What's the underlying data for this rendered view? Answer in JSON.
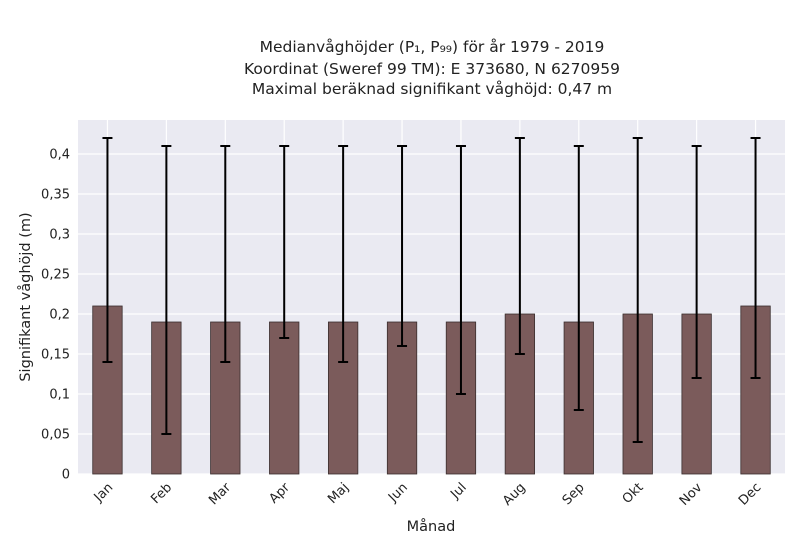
{
  "chart_data": {
    "type": "bar",
    "title_lines": [
      "Medianvåghöjder (P₁, P₉₉) för år 1979 - 2019",
      "Koordinat (Sweref 99 TM): E 373680, N 6270959",
      "Maximal beräknad signifikant våghöjd: 0,47 m"
    ],
    "xlabel": "Månad",
    "ylabel": "Signifikant våghöjd (m)",
    "categories": [
      "Jan",
      "Feb",
      "Mar",
      "Apr",
      "Maj",
      "Jun",
      "Jul",
      "Aug",
      "Sep",
      "Okt",
      "Nov",
      "Dec"
    ],
    "values": [
      0.21,
      0.19,
      0.19,
      0.19,
      0.19,
      0.19,
      0.19,
      0.2,
      0.19,
      0.2,
      0.2,
      0.21
    ],
    "p1": [
      0.14,
      0.05,
      0.14,
      0.17,
      0.14,
      0.16,
      0.1,
      0.15,
      0.08,
      0.04,
      0.12,
      0.12
    ],
    "p99": [
      0.42,
      0.41,
      0.41,
      0.41,
      0.41,
      0.41,
      0.41,
      0.42,
      0.41,
      0.42,
      0.41,
      0.42
    ],
    "yticks": [
      0,
      0.05,
      0.1,
      0.15,
      0.2,
      0.25,
      0.3,
      0.35,
      0.4
    ],
    "ytick_labels": [
      "0",
      "0,05",
      "0,1",
      "0,15",
      "0,2",
      "0,25",
      "0,3",
      "0,35",
      "0,4"
    ],
    "ylim": [
      0,
      0.44
    ],
    "grid": true,
    "colors": {
      "bar": "#7b5b5b",
      "bar_edge": "#3a2e2e",
      "error": "#000000",
      "plot_bg": "#eaeaf2",
      "grid": "#ffffff"
    }
  }
}
